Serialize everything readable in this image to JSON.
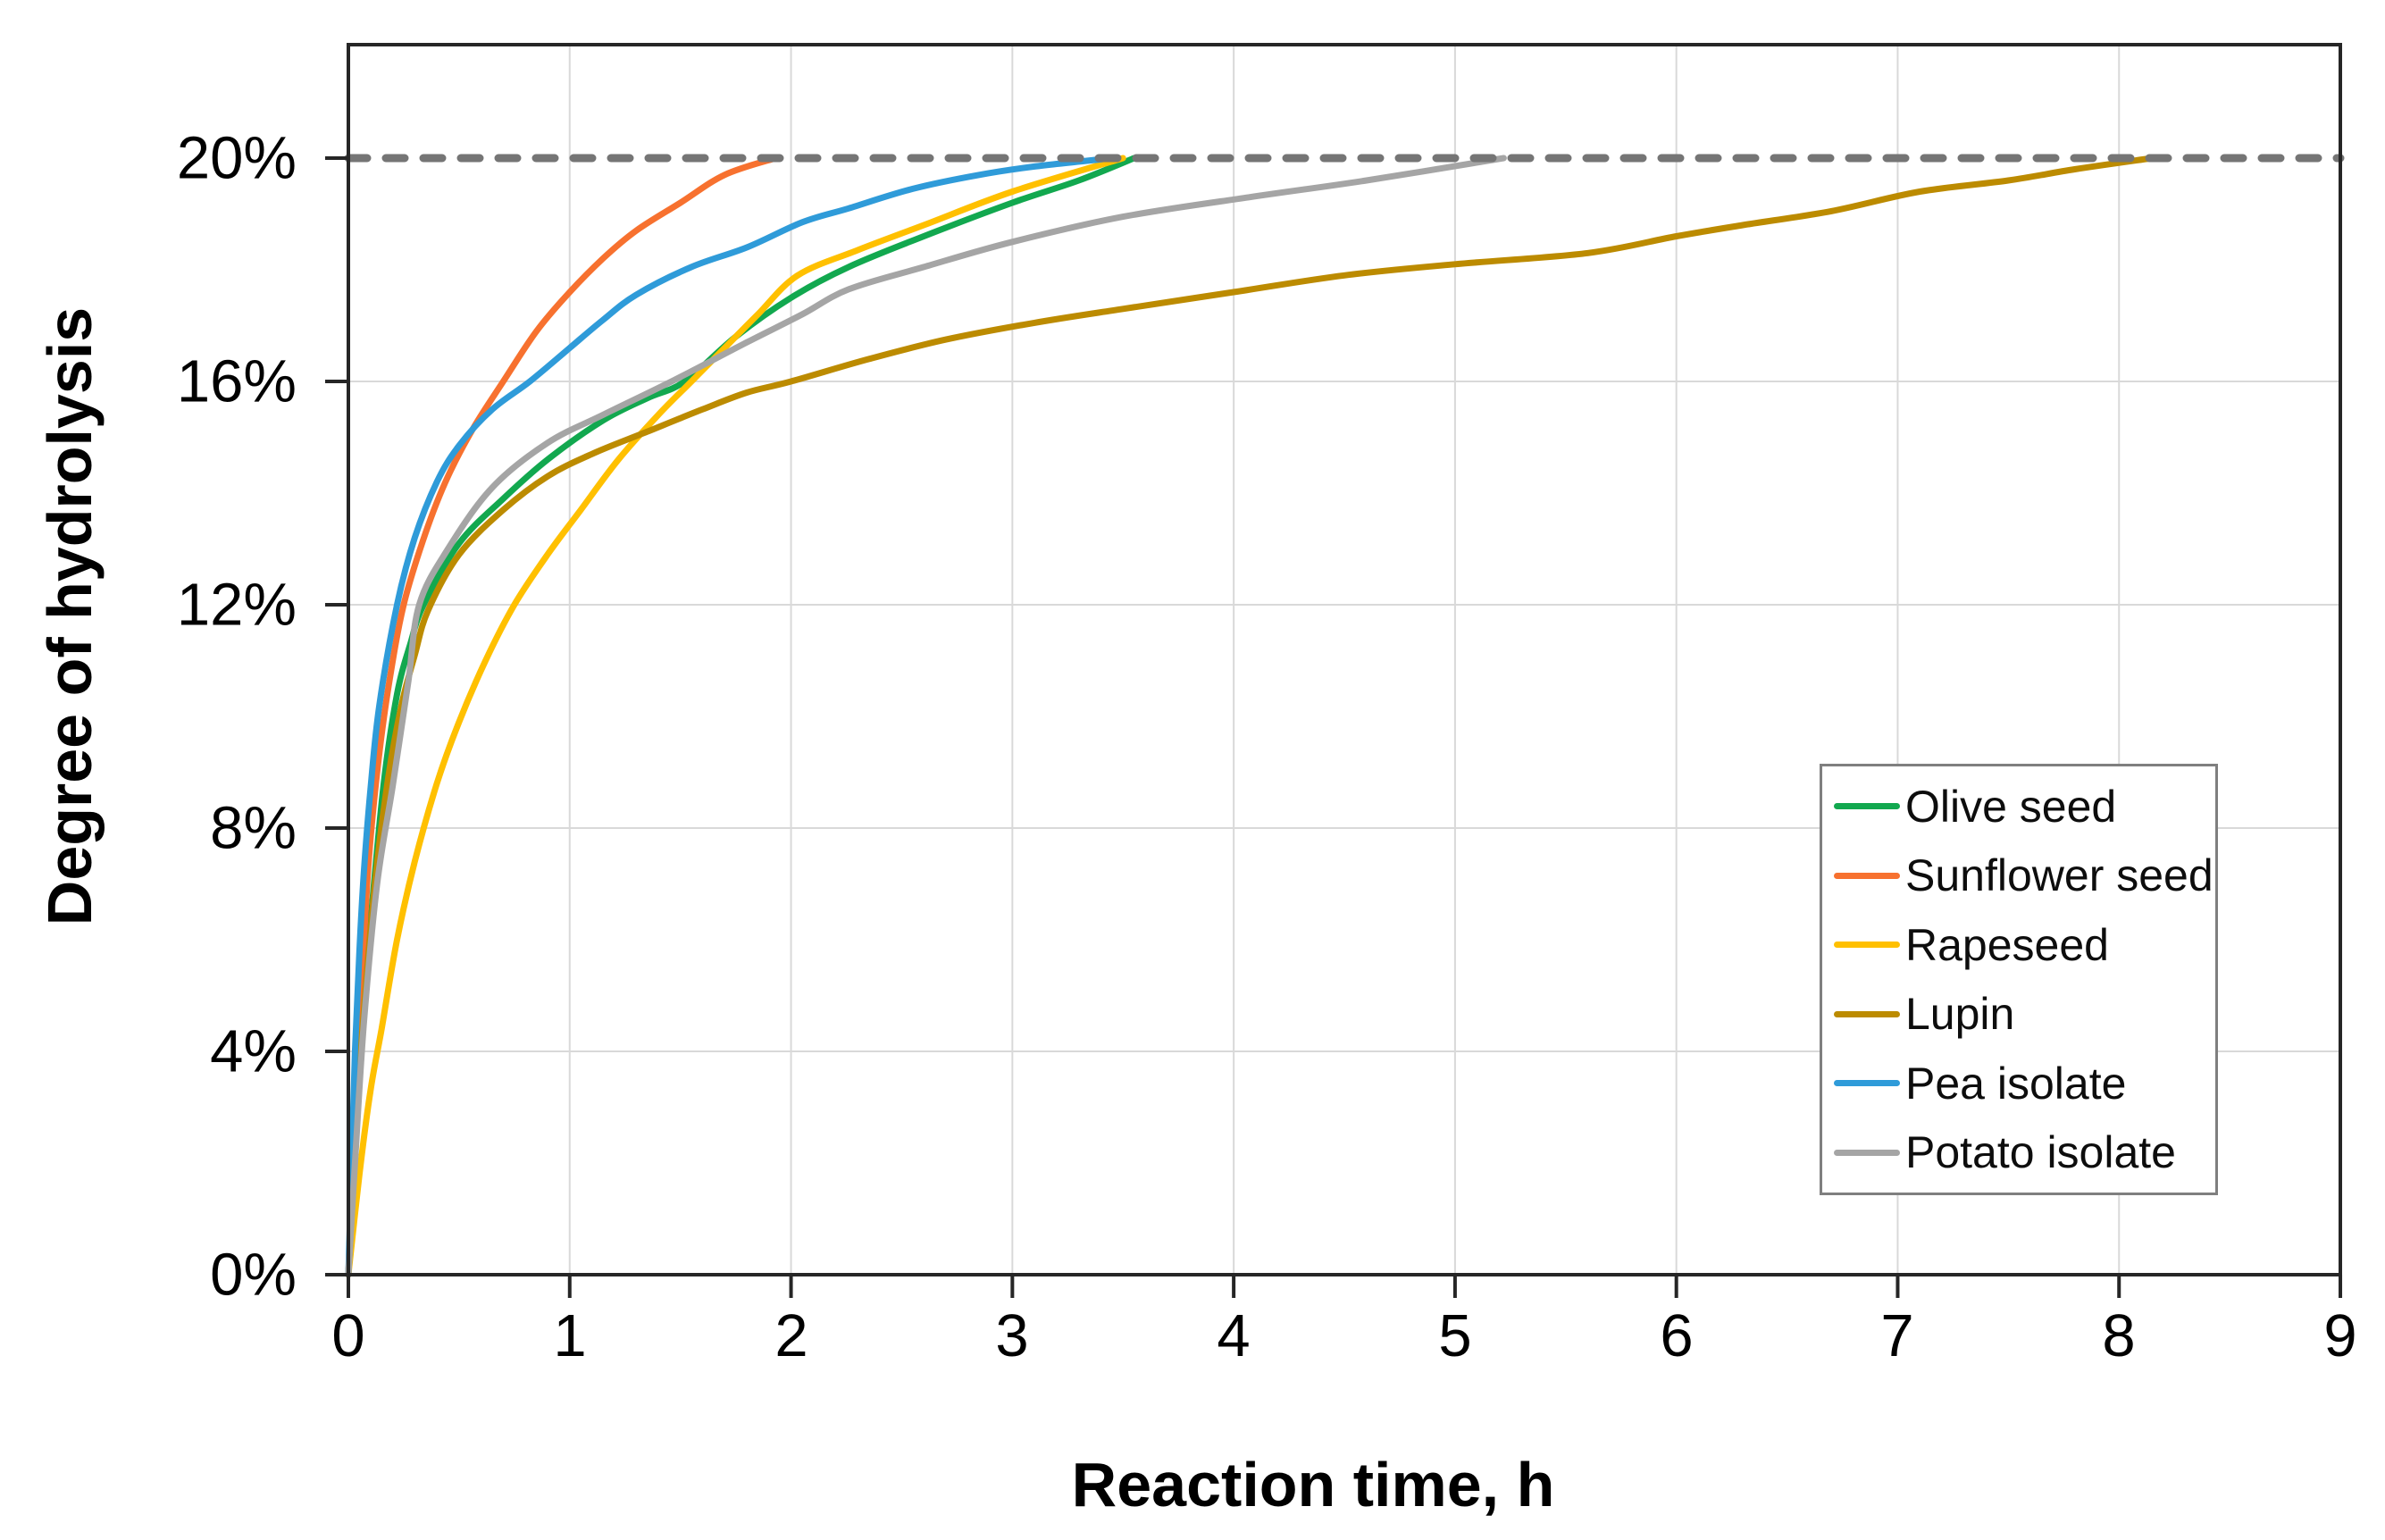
{
  "figure": {
    "background": "#ffffff",
    "text_color": "#000000",
    "gridline_color": "#d9d9d9",
    "axis_color": "#262626",
    "legend_border_color": "#7f7f7f"
  },
  "chart_data": {
    "type": "line",
    "title": "",
    "xlabel": "Reaction time, h",
    "ylabel": "Degree of hydrolysis",
    "x_range_hours": [
      0,
      9
    ],
    "y_range_percent": [
      0,
      22
    ],
    "grid": "on",
    "legend_position": "inside-right-middle",
    "x_ticks": [
      {
        "label": "0",
        "value": 0
      },
      {
        "label": "1",
        "value": 1
      },
      {
        "label": "2",
        "value": 2
      },
      {
        "label": "3",
        "value": 3
      },
      {
        "label": "4",
        "value": 4
      },
      {
        "label": "5",
        "value": 5
      },
      {
        "label": "6",
        "value": 6
      },
      {
        "label": "7",
        "value": 7
      },
      {
        "label": "8",
        "value": 8
      },
      {
        "label": "9",
        "value": 9
      }
    ],
    "y_ticks": [
      {
        "label": "0%",
        "value": 0
      },
      {
        "label": "4%",
        "value": 4
      },
      {
        "label": "8%",
        "value": 8
      },
      {
        "label": "12%",
        "value": 12
      },
      {
        "label": "16%",
        "value": 16
      },
      {
        "label": "20%",
        "value": 20
      }
    ],
    "target_line": {
      "value_percent": 20,
      "style": "dashed",
      "color": "#757575"
    },
    "series": [
      {
        "name": "Olive seed",
        "color": "#12a84f",
        "reaches_20pct_at_h": 3.55,
        "points": [
          [
            0,
            0
          ],
          [
            0.03,
            2.2
          ],
          [
            0.06,
            4.3
          ],
          [
            0.1,
            6.3
          ],
          [
            0.16,
            8.8
          ],
          [
            0.22,
            10.4
          ],
          [
            0.28,
            11.3
          ],
          [
            0.34,
            12
          ],
          [
            0.5,
            13.1
          ],
          [
            0.7,
            13.9
          ],
          [
            0.9,
            14.6
          ],
          [
            1.15,
            15.3
          ],
          [
            1.35,
            15.7
          ],
          [
            1.52,
            16
          ],
          [
            1.75,
            16.8
          ],
          [
            2.0,
            17.5
          ],
          [
            2.26,
            18.05
          ],
          [
            2.6,
            18.6
          ],
          [
            3.0,
            19.2
          ],
          [
            3.3,
            19.6
          ],
          [
            3.55,
            20
          ]
        ]
      },
      {
        "name": "Sunflower seed",
        "color": "#f7712f",
        "reaches_20pct_at_h": 1.93,
        "points": [
          [
            0,
            0
          ],
          [
            0.02,
            2
          ],
          [
            0.05,
            4.5
          ],
          [
            0.09,
            7.3
          ],
          [
            0.13,
            9
          ],
          [
            0.18,
            10.5
          ],
          [
            0.25,
            12
          ],
          [
            0.35,
            13.3
          ],
          [
            0.45,
            14.3
          ],
          [
            0.57,
            15.2
          ],
          [
            0.7,
            16
          ],
          [
            0.85,
            16.9
          ],
          [
            1.0,
            17.6
          ],
          [
            1.15,
            18.2
          ],
          [
            1.3,
            18.7
          ],
          [
            1.5,
            19.2
          ],
          [
            1.7,
            19.7
          ],
          [
            1.93,
            20
          ]
        ]
      },
      {
        "name": "Rapeseed",
        "color": "#ffc000",
        "reaches_20pct_at_h": 3.5,
        "points": [
          [
            0,
            0
          ],
          [
            0.05,
            1.8
          ],
          [
            0.1,
            3.3
          ],
          [
            0.15,
            4.4
          ],
          [
            0.22,
            6
          ],
          [
            0.3,
            7.4
          ],
          [
            0.4,
            8.8
          ],
          [
            0.5,
            9.9
          ],
          [
            0.62,
            11
          ],
          [
            0.75,
            12
          ],
          [
            0.9,
            12.9
          ],
          [
            1.05,
            13.7
          ],
          [
            1.22,
            14.6
          ],
          [
            1.4,
            15.4
          ],
          [
            1.55,
            16
          ],
          [
            1.7,
            16.6
          ],
          [
            1.85,
            17.2
          ],
          [
            2.03,
            17.9
          ],
          [
            2.3,
            18.35
          ],
          [
            2.6,
            18.8
          ],
          [
            3.0,
            19.4
          ],
          [
            3.5,
            20
          ]
        ]
      },
      {
        "name": "Lupin",
        "color": "#bc8b00",
        "reaches_20pct_at_h": 8.15,
        "points": [
          [
            0,
            0
          ],
          [
            0.03,
            2.2
          ],
          [
            0.06,
            4.2
          ],
          [
            0.12,
            7
          ],
          [
            0.18,
            8.9
          ],
          [
            0.24,
            10.2
          ],
          [
            0.3,
            11.1
          ],
          [
            0.36,
            11.9
          ],
          [
            0.5,
            12.9
          ],
          [
            0.7,
            13.7
          ],
          [
            0.9,
            14.3
          ],
          [
            1.1,
            14.7
          ],
          [
            1.35,
            15.1
          ],
          [
            1.6,
            15.5
          ],
          [
            1.8,
            15.8
          ],
          [
            2.0,
            16
          ],
          [
            2.35,
            16.4
          ],
          [
            2.7,
            16.75
          ],
          [
            3.1,
            17.05
          ],
          [
            3.5,
            17.3
          ],
          [
            4.0,
            17.6
          ],
          [
            4.5,
            17.9
          ],
          [
            5.0,
            18.1
          ],
          [
            5.6,
            18.3
          ],
          [
            6.0,
            18.6
          ],
          [
            6.3,
            18.8
          ],
          [
            6.7,
            19.05
          ],
          [
            7.1,
            19.4
          ],
          [
            7.5,
            19.6
          ],
          [
            7.8,
            19.8
          ],
          [
            8.15,
            20
          ]
        ]
      },
      {
        "name": "Pea isolate",
        "color": "#2f9bd9",
        "reaches_20pct_at_h": 3.45,
        "points": [
          [
            0,
            0
          ],
          [
            0.015,
            2
          ],
          [
            0.03,
            4
          ],
          [
            0.05,
            5.8
          ],
          [
            0.07,
            7.2
          ],
          [
            0.1,
            8.7
          ],
          [
            0.14,
            10.2
          ],
          [
            0.22,
            12
          ],
          [
            0.3,
            13.2
          ],
          [
            0.4,
            14.2
          ],
          [
            0.5,
            14.85
          ],
          [
            0.65,
            15.5
          ],
          [
            0.82,
            16
          ],
          [
            1.0,
            16.6
          ],
          [
            1.15,
            17.1
          ],
          [
            1.3,
            17.55
          ],
          [
            1.55,
            18.05
          ],
          [
            1.8,
            18.4
          ],
          [
            2.05,
            18.85
          ],
          [
            2.26,
            19.1
          ],
          [
            2.55,
            19.45
          ],
          [
            2.85,
            19.7
          ],
          [
            3.1,
            19.85
          ],
          [
            3.45,
            20
          ]
        ]
      },
      {
        "name": "Potato isolate",
        "color": "#a5a5a5",
        "reaches_20pct_at_h": 5.22,
        "points": [
          [
            0,
            0
          ],
          [
            0.03,
            2
          ],
          [
            0.07,
            4.5
          ],
          [
            0.13,
            7
          ],
          [
            0.2,
            8.75
          ],
          [
            0.27,
            10.6
          ],
          [
            0.32,
            12
          ],
          [
            0.45,
            13.0
          ],
          [
            0.65,
            14.1
          ],
          [
            0.9,
            14.9
          ],
          [
            1.15,
            15.4
          ],
          [
            1.46,
            16
          ],
          [
            1.8,
            16.7
          ],
          [
            2.05,
            17.2
          ],
          [
            2.26,
            17.65
          ],
          [
            2.6,
            18.05
          ],
          [
            3.0,
            18.5
          ],
          [
            3.5,
            18.95
          ],
          [
            4.07,
            19.3
          ],
          [
            4.6,
            19.6
          ],
          [
            5.22,
            20
          ]
        ]
      }
    ]
  }
}
